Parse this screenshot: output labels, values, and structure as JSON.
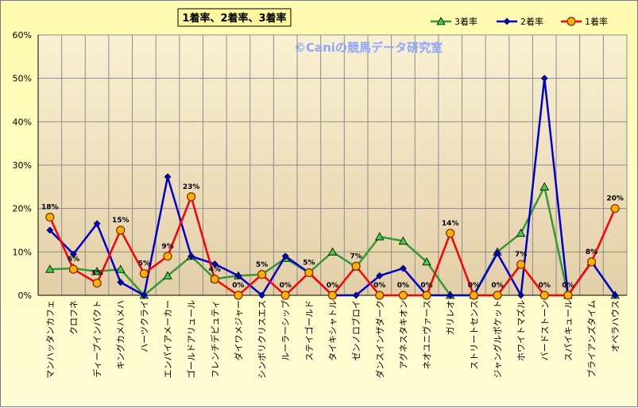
{
  "chart_data": {
    "type": "line",
    "title": "1着率、2着率、3着率",
    "watermark": "©Caniの競馬データ研究室",
    "categories": [
      "マンハッタンカフェ",
      "クロフネ",
      "ディープインパクト",
      "キングカメハメハ",
      "ハーツクライ",
      "エンパイアメーカー",
      "ゴールドアリュール",
      "フレンチデピュティ",
      "ダイワメジャー",
      "シンボリクリスエス",
      "ルーラーシップ",
      "ステイゴールド",
      "タイキシャトル",
      "ゼンノロブロイ",
      "ダンスインザダーク",
      "アグネスタキオン",
      "ネオユニヴァース",
      "ガリレオ",
      "ストリートセンス",
      "ジャングルポケット",
      "ホワイトマズル",
      "バードストーン",
      "スパイキュール",
      "ブライアンズタイム",
      "オペラハウス"
    ],
    "ylim": [
      0,
      60
    ],
    "yticks": [
      "0%",
      "10%",
      "20%",
      "30%",
      "40%",
      "50%",
      "60%"
    ],
    "grid": true,
    "legend_position": "top-right",
    "series": [
      {
        "name": "3着率",
        "color": "#339933",
        "marker": "triangle",
        "values": [
          6,
          6.2,
          5.5,
          6,
          0,
          4.5,
          9,
          3.8,
          4.5,
          4.8,
          8.5,
          5.2,
          10,
          6.5,
          13.5,
          12.5,
          7.7,
          0,
          0,
          10,
          14.3,
          25,
          0,
          7.7,
          0
        ]
      },
      {
        "name": "2着率",
        "color": "#0000cc",
        "marker": "diamond",
        "values": [
          15,
          9.5,
          16.5,
          3,
          0,
          27.3,
          9,
          7.2,
          4.5,
          0,
          9,
          5.2,
          0,
          0,
          4.5,
          6.2,
          0,
          0,
          0,
          9.7,
          0,
          50,
          0,
          7.7,
          0
        ]
      },
      {
        "name": "1着率",
        "color": "#ff0000",
        "marker": "circle",
        "values": [
          18,
          6,
          2.8,
          15,
          5,
          9,
          22.7,
          3.7,
          0,
          4.8,
          0,
          5.2,
          0,
          6.7,
          0,
          0,
          0,
          14.3,
          0,
          0,
          7.1,
          0,
          0,
          7.7,
          20
        ]
      }
    ],
    "data_labels": [
      {
        "index": 0,
        "text": "18%"
      },
      {
        "index": 1,
        "text": "6%"
      },
      {
        "index": 2,
        "text": "3%"
      },
      {
        "index": 3,
        "text": "15%"
      },
      {
        "index": 4,
        "text": "5%"
      },
      {
        "index": 5,
        "text": "9%"
      },
      {
        "index": 6,
        "text": "23%"
      },
      {
        "index": 7,
        "text": "4%"
      },
      {
        "index": 8,
        "text": "0%"
      },
      {
        "index": 9,
        "text": "5%"
      },
      {
        "index": 10,
        "text": "0%"
      },
      {
        "index": 11,
        "text": "5%"
      },
      {
        "index": 12,
        "text": "0%"
      },
      {
        "index": 13,
        "text": "7%"
      },
      {
        "index": 14,
        "text": "0%"
      },
      {
        "index": 15,
        "text": "0%"
      },
      {
        "index": 16,
        "text": "0%"
      },
      {
        "index": 17,
        "text": "14%"
      },
      {
        "index": 18,
        "text": "0%"
      },
      {
        "index": 19,
        "text": "0%"
      },
      {
        "index": 20,
        "text": "7%"
      },
      {
        "index": 21,
        "text": "0%"
      },
      {
        "index": 22,
        "text": "0%"
      },
      {
        "index": 23,
        "text": "8%"
      },
      {
        "index": 24,
        "text": "20%"
      }
    ],
    "legend_order": [
      "3着率",
      "2着率",
      "1着率"
    ]
  },
  "colors": {
    "plot_top": "#f9f1d2",
    "plot_bottom": "#e3cfa8",
    "grid": "#8c8c8c",
    "title_box": "#fff6a0",
    "frame_bg": "#fffbb0",
    "watermark": "#8fa6ff"
  }
}
